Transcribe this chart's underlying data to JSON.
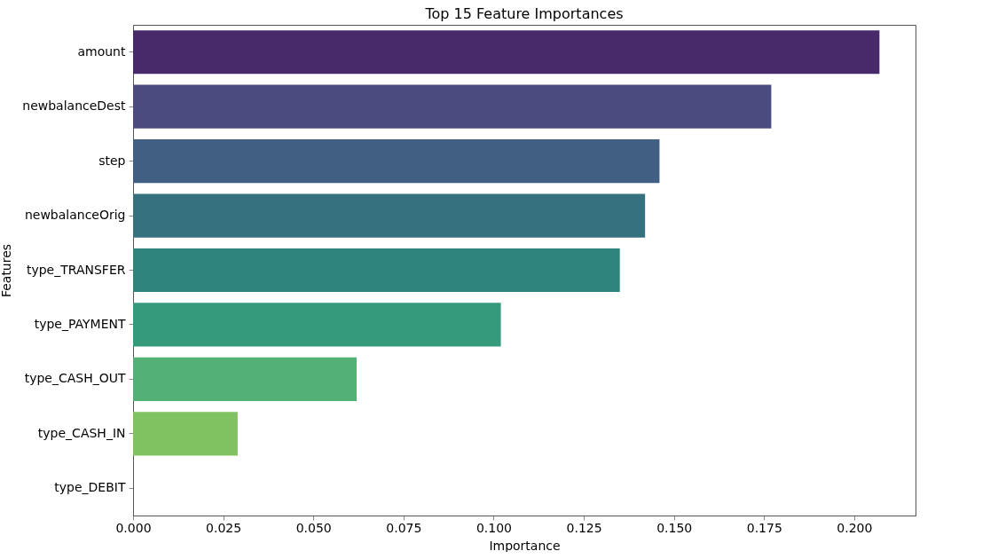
{
  "chart_data": {
    "type": "bar",
    "orientation": "horizontal",
    "title": "Top 15 Feature Importances",
    "xlabel": "Importance",
    "ylabel": "Features",
    "categories": [
      "amount",
      "newbalanceDest",
      "step",
      "newbalanceOrig",
      "type_TRANSFER",
      "type_PAYMENT",
      "type_CASH_OUT",
      "type_CASH_IN",
      "type_DEBIT"
    ],
    "values": [
      0.207,
      0.177,
      0.146,
      0.142,
      0.135,
      0.102,
      0.062,
      0.029,
      0
    ],
    "colors": [
      "#482a6b",
      "#4a4c7f",
      "#415f82",
      "#36717f",
      "#2e847d",
      "#349a7b",
      "#54b175",
      "#80c261",
      "#b5d648"
    ],
    "xlim": [
      0,
      0.217
    ],
    "xticks": [
      {
        "value": 0,
        "label": "0.000"
      },
      {
        "value": 0.025,
        "label": "0.025"
      },
      {
        "value": 0.05,
        "label": "0.050"
      },
      {
        "value": 0.075,
        "label": "0.075"
      },
      {
        "value": 0.1,
        "label": "0.100"
      },
      {
        "value": 0.125,
        "label": "0.125"
      },
      {
        "value": 0.15,
        "label": "0.150"
      },
      {
        "value": 0.175,
        "label": "0.175"
      },
      {
        "value": 0.2,
        "label": "0.200"
      }
    ],
    "grid": false,
    "legend": false
  }
}
